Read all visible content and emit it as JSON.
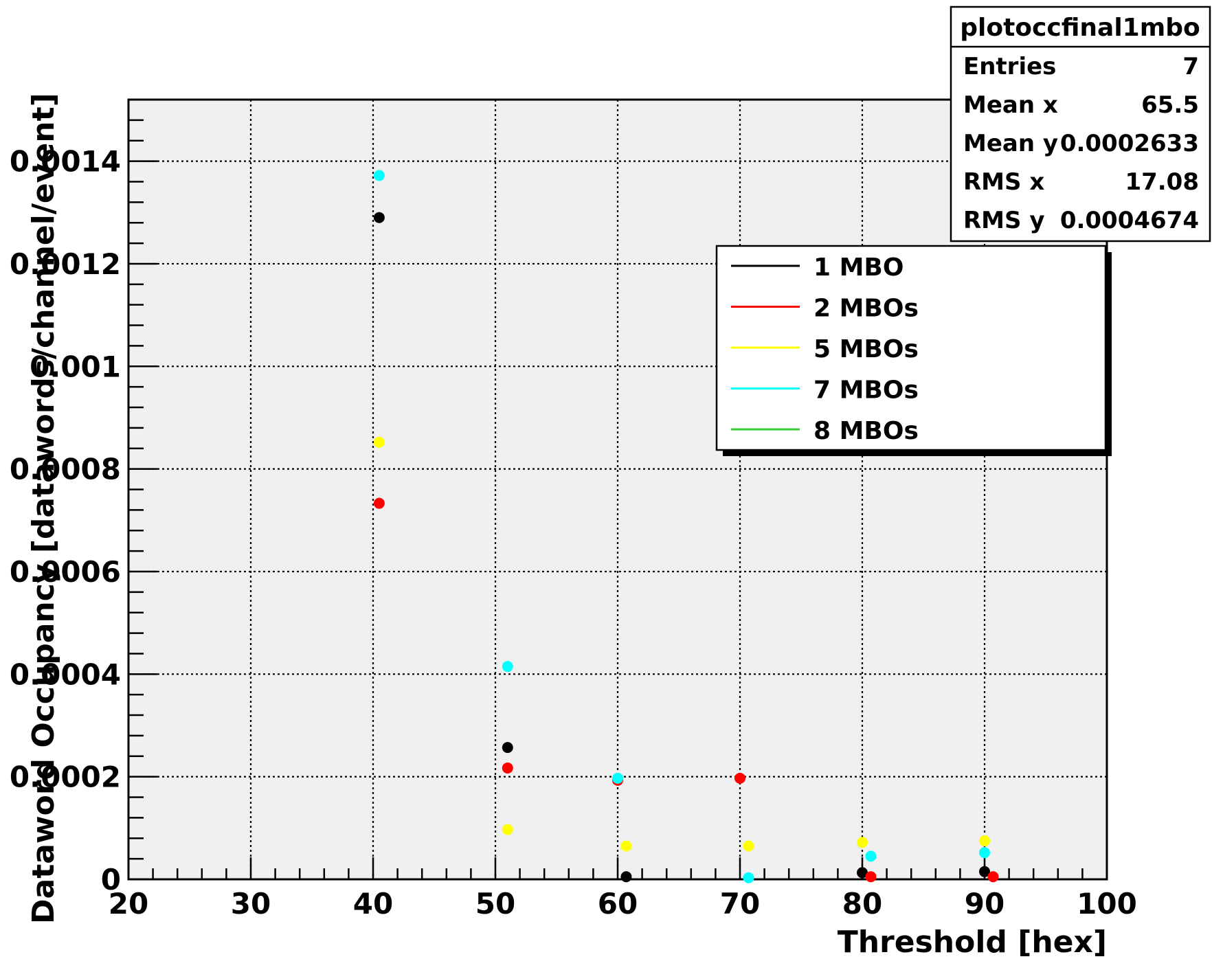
{
  "chart_data": {
    "type": "scatter",
    "title": "",
    "xlabel": "Threshold [hex]",
    "ylabel": "Dataword Occupancy [datawords/channel/event]",
    "xlim": [
      20,
      100
    ],
    "ylim": [
      0,
      0.00152
    ],
    "x_ticks": [
      20,
      30,
      40,
      50,
      60,
      70,
      80,
      90,
      100
    ],
    "x_tick_labels": [
      "20",
      "30",
      "40",
      "50",
      "60",
      "70",
      "80",
      "90",
      "100"
    ],
    "y_ticks": [
      0,
      0.0002,
      0.0004,
      0.0006,
      0.0008,
      0.001,
      0.0012,
      0.0014
    ],
    "y_tick_labels": [
      "0",
      "0.0002",
      "0.0004",
      "0.0006",
      "0.0008",
      "0.001",
      "0.0012",
      "0.0014"
    ],
    "grid": true,
    "legend_position": "top-right",
    "series": [
      {
        "name": "1 MBO",
        "color": "#000000",
        "x": [
          40.5,
          51,
          60.7,
          80,
          90
        ],
        "y": [
          0.00129,
          0.000257,
          5e-06,
          1.3e-05,
          1.5e-05
        ]
      },
      {
        "name": "2 MBOs",
        "color": "#ff0000",
        "x": [
          40.5,
          51,
          60,
          70,
          80.7,
          90.7
        ],
        "y": [
          0.000733,
          0.000217,
          0.000193,
          0.000197,
          5e-06,
          5e-06
        ]
      },
      {
        "name": "5 MBOs",
        "color": "#ffff00",
        "x": [
          40.5,
          51,
          60.7,
          70.7,
          80,
          90
        ],
        "y": [
          0.000852,
          9.7e-05,
          6.5e-05,
          6.5e-05,
          7.2e-05,
          7.5e-05
        ]
      },
      {
        "name": "7 MBOs",
        "color": "#00ffff",
        "x": [
          40.5,
          51,
          60,
          70.7,
          80.7,
          90
        ],
        "y": [
          0.001372,
          0.000415,
          0.000197,
          3e-06,
          4.5e-05,
          5.2e-05
        ]
      },
      {
        "name": "8 MBOs",
        "color": "#33cc33",
        "x": [],
        "y": []
      }
    ],
    "stats_box": {
      "title": "plotoccfinal1mbo",
      "rows": [
        {
          "label": "Entries",
          "value": "7"
        },
        {
          "label": "Mean x",
          "value": "65.5"
        },
        {
          "label": "Mean y",
          "value": "0.0002633"
        },
        {
          "label": "RMS x",
          "value": "17.08"
        },
        {
          "label": "RMS y",
          "value": "0.0004674"
        }
      ]
    }
  }
}
